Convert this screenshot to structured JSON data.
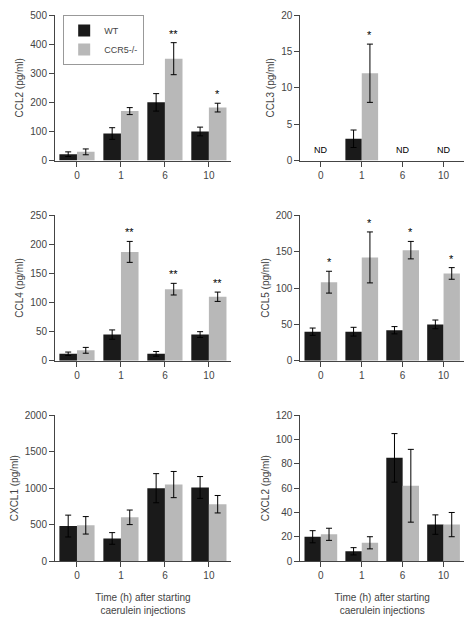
{
  "chart_data": [
    {
      "type": "bar",
      "ylabel": "CCL2 (pg/ml)",
      "categories": [
        0,
        1,
        6,
        10
      ],
      "series": [
        {
          "name": "WT",
          "color": "#1a1a1a",
          "values": [
            22,
            93,
            200,
            100
          ],
          "errors": [
            8,
            20,
            30,
            15
          ]
        },
        {
          "name": "CCR5-/-",
          "color": "#b8b8b8",
          "values": [
            30,
            170,
            350,
            182
          ],
          "errors": [
            10,
            12,
            55,
            15
          ]
        }
      ],
      "annotations": [
        {
          "text": "**",
          "category": 6,
          "series": "CCR5-/-"
        },
        {
          "text": "*",
          "category": 10,
          "series": "CCR5-/-"
        }
      ],
      "ylim": [
        0,
        500
      ],
      "yticks": [
        0,
        100,
        200,
        300,
        400,
        500
      ],
      "grid": false,
      "legend": "upper left"
    },
    {
      "type": "bar",
      "ylabel": "CCL3 (pg/ml)",
      "categories": [
        0,
        1,
        6,
        10
      ],
      "series": [
        {
          "name": "WT",
          "color": "#1a1a1a",
          "values": [
            null,
            3,
            null,
            null
          ],
          "errors": [
            null,
            1.2,
            null,
            null
          ]
        },
        {
          "name": "CCR5-/-",
          "color": "#b8b8b8",
          "values": [
            null,
            12,
            null,
            null
          ],
          "errors": [
            null,
            4,
            null,
            null
          ]
        }
      ],
      "annotations": [
        {
          "text": "ND",
          "category": 0
        },
        {
          "text": "ND",
          "category": 6
        },
        {
          "text": "ND",
          "category": 10
        },
        {
          "text": "*",
          "category": 1,
          "series": "CCR5-/-"
        }
      ],
      "ylim": [
        0,
        20
      ],
      "yticks": [
        0,
        5,
        10,
        15,
        20
      ],
      "grid": false
    },
    {
      "type": "bar",
      "ylabel": "CCL4 (pg/ml)",
      "categories": [
        0,
        1,
        6,
        10
      ],
      "series": [
        {
          "name": "WT",
          "color": "#1a1a1a",
          "values": [
            12,
            45,
            12,
            45
          ],
          "errors": [
            3,
            8,
            4,
            5
          ]
        },
        {
          "name": "CCR5-/-",
          "color": "#b8b8b8",
          "values": [
            18,
            187,
            123,
            110
          ],
          "errors": [
            5,
            18,
            10,
            8
          ]
        }
      ],
      "annotations": [
        {
          "text": "**",
          "category": 1,
          "series": "CCR5-/-"
        },
        {
          "text": "**",
          "category": 6,
          "series": "CCR5-/-"
        },
        {
          "text": "**",
          "category": 10,
          "series": "CCR5-/-"
        }
      ],
      "ylim": [
        0,
        250
      ],
      "yticks": [
        0,
        50,
        100,
        150,
        200,
        250
      ],
      "grid": false
    },
    {
      "type": "bar",
      "ylabel": "CCL5 (pg/ml)",
      "categories": [
        0,
        1,
        6,
        10
      ],
      "series": [
        {
          "name": "WT",
          "color": "#1a1a1a",
          "values": [
            40,
            40,
            42,
            50
          ],
          "errors": [
            5,
            6,
            5,
            6
          ]
        },
        {
          "name": "CCR5-/-",
          "color": "#b8b8b8",
          "values": [
            108,
            142,
            152,
            120
          ],
          "errors": [
            15,
            35,
            12,
            8
          ]
        }
      ],
      "annotations": [
        {
          "text": "*",
          "category": 0,
          "series": "CCR5-/-"
        },
        {
          "text": "*",
          "category": 1,
          "series": "CCR5-/-"
        },
        {
          "text": "*",
          "category": 6,
          "series": "CCR5-/-"
        },
        {
          "text": "*",
          "category": 10,
          "series": "CCR5-/-"
        }
      ],
      "ylim": [
        0,
        200
      ],
      "yticks": [
        0,
        50,
        100,
        150,
        200
      ],
      "grid": false
    },
    {
      "type": "bar",
      "ylabel": "CXCL1 (pg/ml)",
      "xlabel": "Time (h) after starting\ncaerulein injections",
      "categories": [
        0,
        1,
        6,
        10
      ],
      "series": [
        {
          "name": "WT",
          "color": "#1a1a1a",
          "values": [
            480,
            310,
            1000,
            1010
          ],
          "errors": [
            150,
            80,
            200,
            150
          ]
        },
        {
          "name": "CCR5-/-",
          "color": "#b8b8b8",
          "values": [
            490,
            600,
            1050,
            780
          ],
          "errors": [
            120,
            100,
            180,
            120
          ]
        }
      ],
      "ylim": [
        0,
        2000
      ],
      "yticks": [
        0,
        500,
        1000,
        1500,
        2000
      ],
      "grid": false
    },
    {
      "type": "bar",
      "ylabel": "CXCL2 (pg/ml)",
      "xlabel": "Time (h) after starting\ncaerulein injections",
      "categories": [
        0,
        1,
        6,
        10
      ],
      "series": [
        {
          "name": "WT",
          "color": "#1a1a1a",
          "values": [
            20,
            8,
            85,
            30
          ],
          "errors": [
            5,
            3,
            20,
            8
          ]
        },
        {
          "name": "CCR5-/-",
          "color": "#b8b8b8",
          "values": [
            22,
            15,
            62,
            30
          ],
          "errors": [
            5,
            5,
            30,
            10
          ]
        }
      ],
      "ylim": [
        0,
        120
      ],
      "yticks": [
        0,
        20,
        40,
        60,
        80,
        100,
        120
      ],
      "grid": false
    }
  ]
}
